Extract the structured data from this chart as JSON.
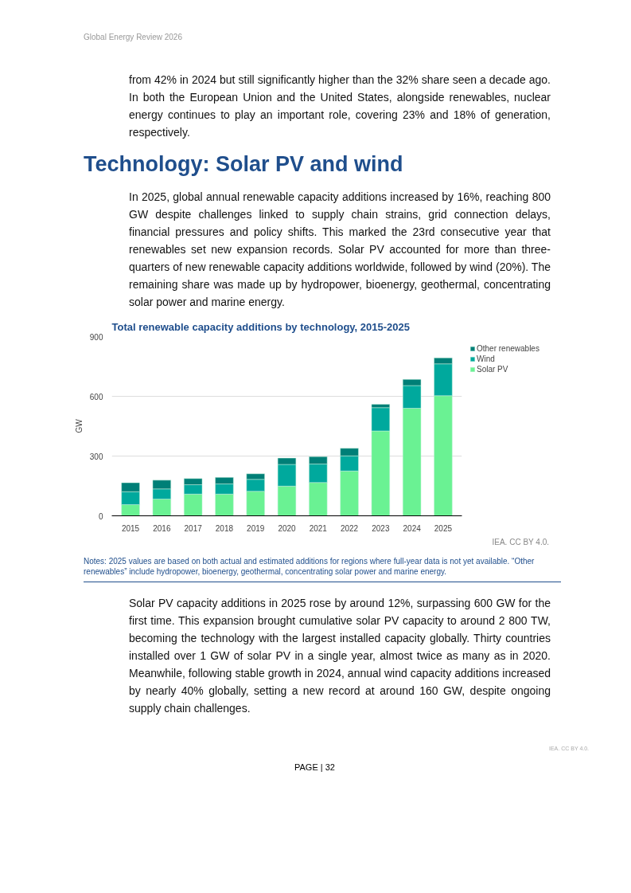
{
  "chart_data": {
    "type": "bar",
    "stacked": true,
    "title": "Total renewable capacity additions by technology, 2015-2025",
    "ylabel": "GW",
    "categories": [
      "2015",
      "2016",
      "2017",
      "2018",
      "2019",
      "2020",
      "2021",
      "2022",
      "2023",
      "2024",
      "2025"
    ],
    "series": [
      {
        "name": "Solar PV",
        "color": "#6af293",
        "values": [
          56,
          84,
          109,
          109,
          123,
          149,
          167,
          225,
          426,
          540,
          603
        ]
      },
      {
        "name": "Wind",
        "color": "#00a99d",
        "values": [
          65,
          51,
          47,
          51,
          60,
          109,
          93,
          76,
          117,
          114,
          160
        ]
      },
      {
        "name": "Other renewables",
        "color": "#007f77",
        "values": [
          45,
          44,
          31,
          33,
          28,
          32,
          37,
          38,
          17,
          31,
          30
        ]
      }
    ],
    "ylim": [
      0,
      900
    ],
    "yticks": [
      0,
      300,
      600,
      900
    ],
    "grid": "y",
    "legend": "top right",
    "annotations": [
      "Global Energy Review 2026",
      "from 42% in 2024 but still significantly higher than the 32% share seen a decade ago. In both the European Union and the United States, alongside renewables, nuclear energy continues to play an important role, covering 23% and 18% of generation, respectively.",
      "Technology: Solar PV and wind",
      "In 2025, global annual renewable capacity additions increased by 16%, reaching 800 GW despite challenges linked to supply chain strains, grid connection delays, financial pressures and policy shifts. This marked the 23rd consecutive year that renewables set new expansion records. Solar PV accounted for more than three-quarters of new renewable capacity additions worldwide, followed by wind (20%). The remaining share was made up by hydropower, bioenergy, geothermal, concentrating solar power and marine energy.",
      "IEA. CC BY 4.0.",
      "Notes: 2025 values are based on both actual and estimated additions for regions where full-year data is not yet available. “Other renewables” include hydropower, bioenergy, geothermal, concentrating solar power and marine energy.",
      "Solar PV capacity additions in 2025 rose by around 12%, surpassing 600 GW for the first time. This expansion brought cumulative solar PV capacity to around 2 800 TW, becoming the technology with the largest installed capacity globally. Thirty countries installed over 1 GW of solar PV in a single year, almost twice as many as in 2020. Meanwhile, following stable growth in 2024, annual wind capacity additions increased by nearly 40% globally, setting a new record at around 160 GW, despite ongoing supply chain challenges.",
      "PAGE | 32",
      "IEA. CC BY 4.0."
    ]
  }
}
